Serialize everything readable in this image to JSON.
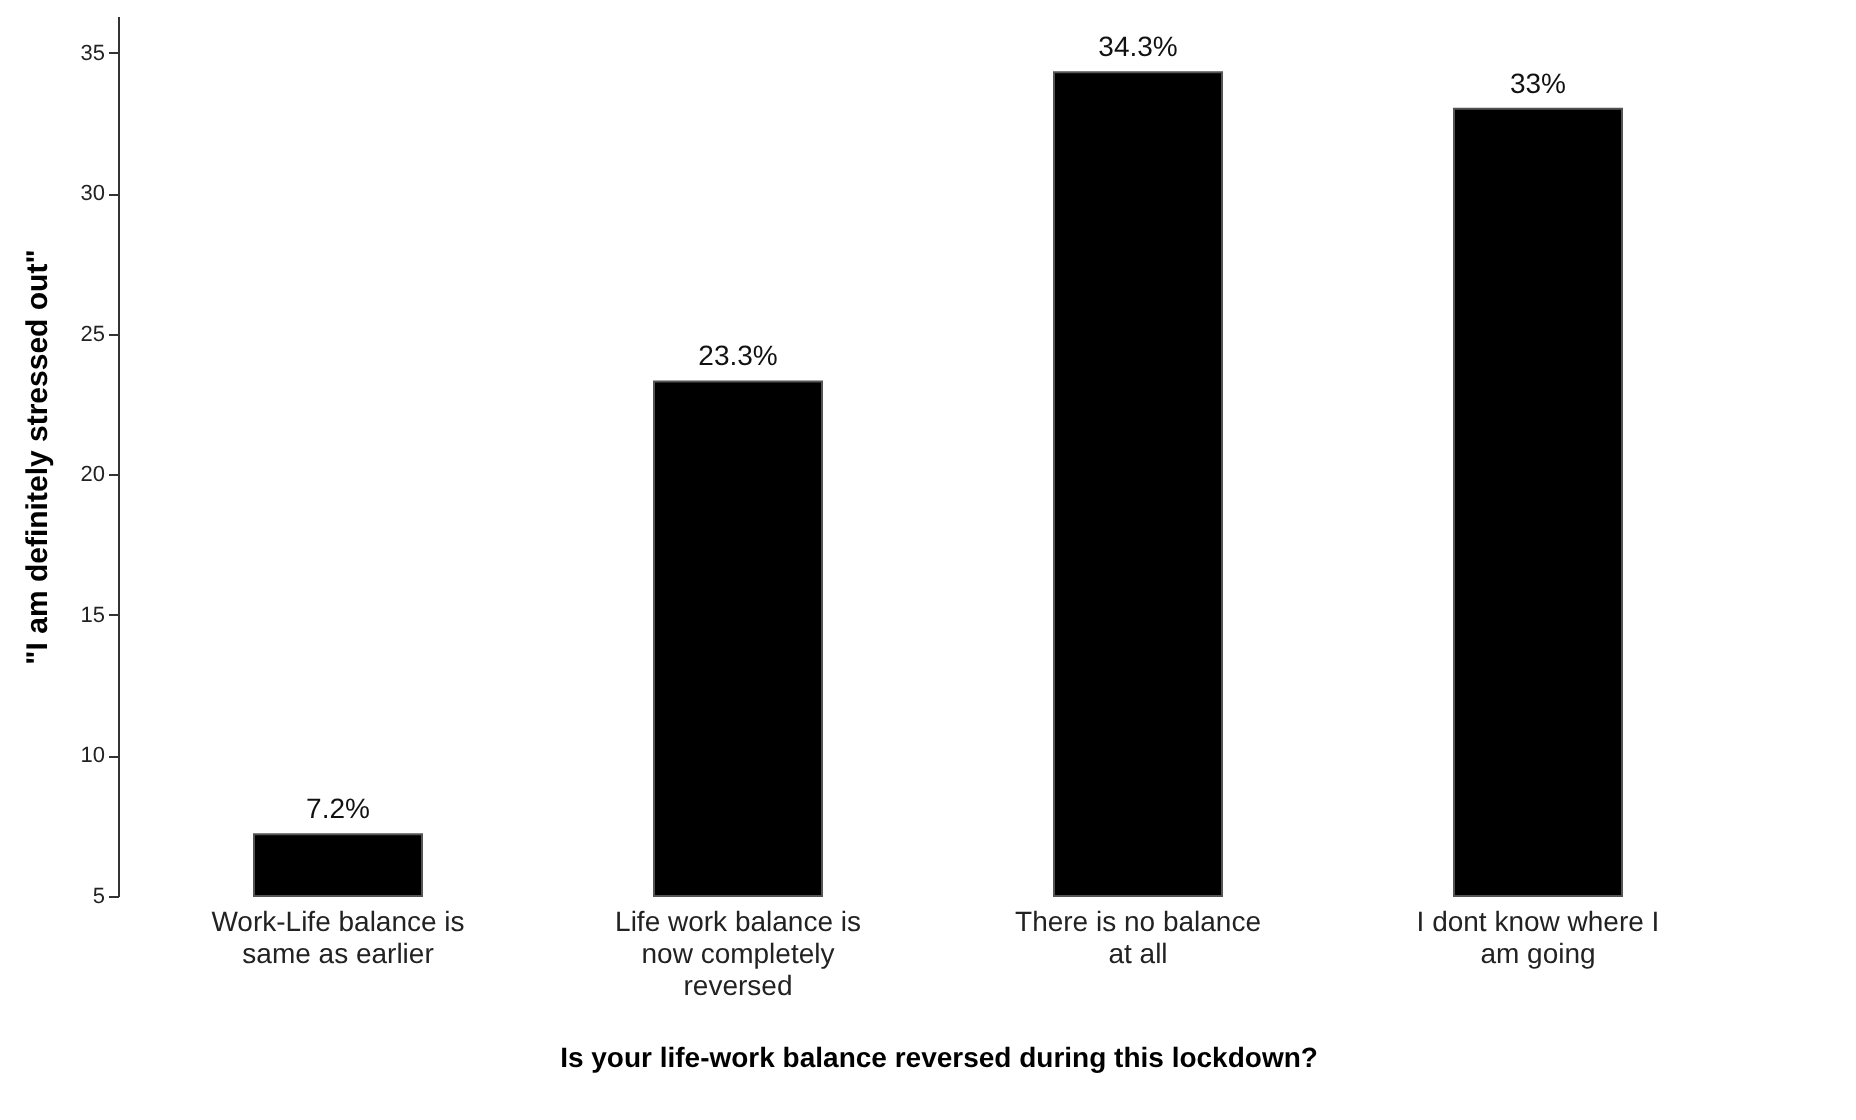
{
  "chart_data": {
    "type": "bar",
    "xlabel": "Is your life-work balance reversed during this lockdown?",
    "ylabel": "\"I am definitely stressed out\"",
    "categories": [
      "Work-Life balance is same as earlier",
      "Life work balance is now completely reversed",
      "There is no balance at all",
      "I dont know where I am going"
    ],
    "values": [
      7.2,
      23.3,
      34.3,
      33
    ],
    "value_labels": [
      "7.2%",
      "23.3%",
      "34.3%",
      "33%"
    ],
    "color": "#000000",
    "ylim": [
      5,
      36.3
    ],
    "yticks": [
      5,
      10,
      15,
      20,
      25,
      30,
      35
    ],
    "grid": false
  }
}
